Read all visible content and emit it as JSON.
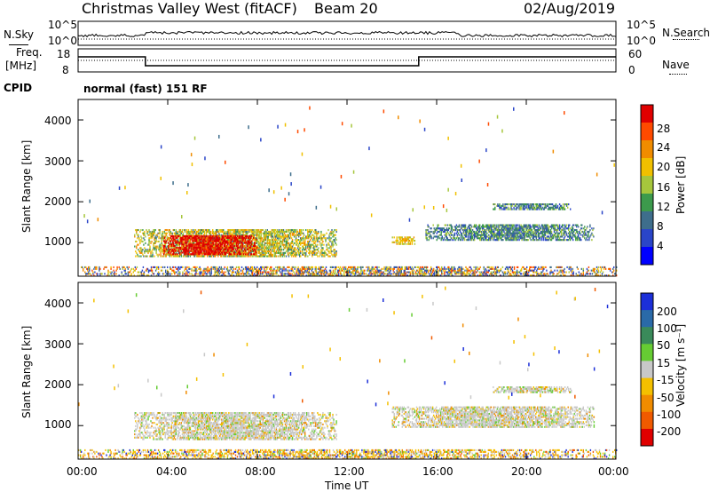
{
  "header": {
    "station": "Christmas Valley West (fitACF)",
    "beam": "Beam 20",
    "date": "02/Aug/2019"
  },
  "top_panels": {
    "nsky_label": "N.Sky",
    "nsky_ticks": [
      "10^5",
      "10^0"
    ],
    "nsearch_label": "N.Search",
    "nsearch_ticks": [
      "10^5",
      "10^0"
    ],
    "freq_label_line1": "Freq.",
    "freq_label_line2": "[MHz]",
    "freq_ticks": [
      "18",
      "8"
    ],
    "nave_label": "Nave",
    "nave_ticks": [
      "60",
      "0"
    ],
    "cpid_label": "CPID",
    "cpid_value": "normal (fast) 151 RF"
  },
  "x_axis": {
    "label": "Time UT",
    "ticks": [
      "00:00",
      "04:00",
      "08:00",
      "12:00",
      "16:00",
      "20:00",
      "00:00"
    ]
  },
  "colors": {
    "power_scale": [
      "#0000ff",
      "#2a45c8",
      "#3e6e8c",
      "#3c9a4c",
      "#a6c63c",
      "#f0c000",
      "#f08c00",
      "#ff4a00",
      "#e00000"
    ],
    "velocity_scale": [
      "#1c2fd8",
      "#2a6aa8",
      "#3a8a5a",
      "#66cc33",
      "#c8c8c8",
      "#f4c000",
      "#f08c00",
      "#f05a00",
      "#e00000"
    ]
  },
  "chart_data": [
    {
      "type": "heatmap",
      "title": "",
      "xlabel": "",
      "ylabel": "Slant Range [km]",
      "colorbar_label": "Power [dB]",
      "colorbar_ticks": [
        "28",
        "24",
        "20",
        "16",
        "12",
        "8",
        "4"
      ],
      "xlim": [
        0,
        24
      ],
      "ylim": [
        180,
        4500
      ],
      "y_ticks": [
        "4000",
        "3000",
        "2000",
        "1000"
      ],
      "regions": [
        {
          "t0": 2.5,
          "t1": 11.5,
          "r0": 650,
          "r1": 1300,
          "level": "medium-high"
        },
        {
          "t0": 3.8,
          "t1": 8.0,
          "r0": 700,
          "r1": 1150,
          "level": "high"
        },
        {
          "t0": 14.0,
          "t1": 15.0,
          "r0": 950,
          "r1": 1150,
          "level": "medium"
        },
        {
          "t0": 15.5,
          "t1": 23.0,
          "r0": 1050,
          "r1": 1450,
          "level": "low-medium"
        },
        {
          "t0": 18.5,
          "t1": 22.0,
          "r0": 1800,
          "r1": 1950,
          "level": "low-medium"
        },
        {
          "t0": 0.0,
          "t1": 24.0,
          "r0": 180,
          "r1": 400,
          "level": "mixed"
        }
      ]
    },
    {
      "type": "heatmap",
      "title": "",
      "xlabel": "Time UT",
      "ylabel": "Slant Range [km]",
      "colorbar_label": "Velocity [m s⁻¹]",
      "colorbar_ticks": [
        "200",
        "100",
        "50",
        "15",
        "-15",
        "-50",
        "-100",
        "-200"
      ],
      "xlim": [
        0,
        24
      ],
      "ylim": [
        180,
        4500
      ],
      "y_ticks": [
        "4000",
        "3000",
        "2000",
        "1000"
      ],
      "regions": [
        {
          "t0": 2.5,
          "t1": 11.5,
          "r0": 650,
          "r1": 1300,
          "level": "near-zero"
        },
        {
          "t0": 14.0,
          "t1": 23.0,
          "r0": 950,
          "r1": 1450,
          "level": "near-zero"
        },
        {
          "t0": 18.5,
          "t1": 22.0,
          "r0": 1800,
          "r1": 1950,
          "level": "near-zero"
        },
        {
          "t0": 0.0,
          "t1": 24.0,
          "r0": 180,
          "r1": 400,
          "level": "negative-small"
        }
      ]
    }
  ]
}
